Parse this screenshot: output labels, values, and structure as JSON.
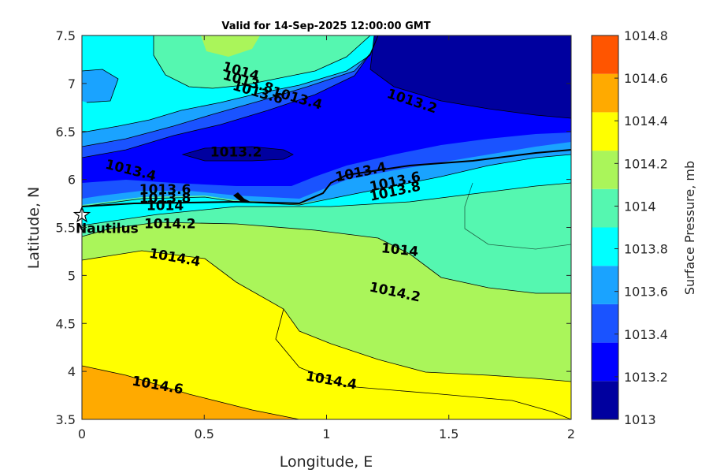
{
  "chart_data": {
    "type": "contour",
    "title": "Valid for 14-Sep-2025 12:00:00 GMT",
    "xlabel": "Longitude, E",
    "ylabel": "Latitude, N",
    "xlim": [
      0,
      2
    ],
    "ylim": [
      3.5,
      7.5
    ],
    "x_ticks": [
      "0",
      "0.5",
      "1",
      "1.5",
      "2"
    ],
    "y_ticks": [
      "3.5",
      "4",
      "4.5",
      "5",
      "5.5",
      "6",
      "6.5",
      "7",
      "7.5"
    ],
    "colorbar": {
      "label": "Surface Pressure, mb",
      "range": [
        1013,
        1014.8
      ],
      "ticks": [
        "1013",
        "1013.2",
        "1013.4",
        "1013.6",
        "1013.8",
        "1014",
        "1014.2",
        "1014.4",
        "1014.6",
        "1014.8"
      ],
      "colors": [
        "#00009f",
        "#0000ff",
        "#1a53ff",
        "#1aa3ff",
        "#00ffff",
        "#55f7b0",
        "#aaf55a",
        "#ffff00",
        "#ffaa00",
        "#ff5500"
      ]
    },
    "contour_labels": [
      {
        "text": "1014",
        "x": 0.65,
        "y": 7.13
      },
      {
        "text": "1013.8",
        "x": 0.68,
        "y": 7.02
      },
      {
        "text": "1013.6",
        "x": 0.72,
        "y": 6.91
      },
      {
        "text": "1013.4",
        "x": 0.88,
        "y": 6.85
      },
      {
        "text": "1013.2",
        "x": 1.35,
        "y": 6.82
      },
      {
        "text": "1013.2",
        "x": 0.63,
        "y": 6.29
      },
      {
        "text": "1013.4",
        "x": 0.2,
        "y": 6.1
      },
      {
        "text": "1013.6",
        "x": 0.34,
        "y": 5.9
      },
      {
        "text": "1013.8",
        "x": 0.34,
        "y": 5.81
      },
      {
        "text": "1014",
        "x": 0.34,
        "y": 5.73
      },
      {
        "text": "1014.2",
        "x": 0.36,
        "y": 5.54
      },
      {
        "text": "1013.4",
        "x": 1.14,
        "y": 6.08
      },
      {
        "text": "1013.6",
        "x": 1.28,
        "y": 5.98
      },
      {
        "text": "1013.8",
        "x": 1.28,
        "y": 5.88
      },
      {
        "text": "1014",
        "x": 1.3,
        "y": 5.27
      },
      {
        "text": "1014.4",
        "x": 0.38,
        "y": 5.19
      },
      {
        "text": "1014.2",
        "x": 1.28,
        "y": 4.83
      },
      {
        "text": "1014.4",
        "x": 1.02,
        "y": 3.91
      },
      {
        "text": "1014.6",
        "x": 0.31,
        "y": 3.86
      }
    ],
    "marker": {
      "label": "Nautilus",
      "x": 0,
      "y": 5.63,
      "symbol": "star"
    }
  }
}
